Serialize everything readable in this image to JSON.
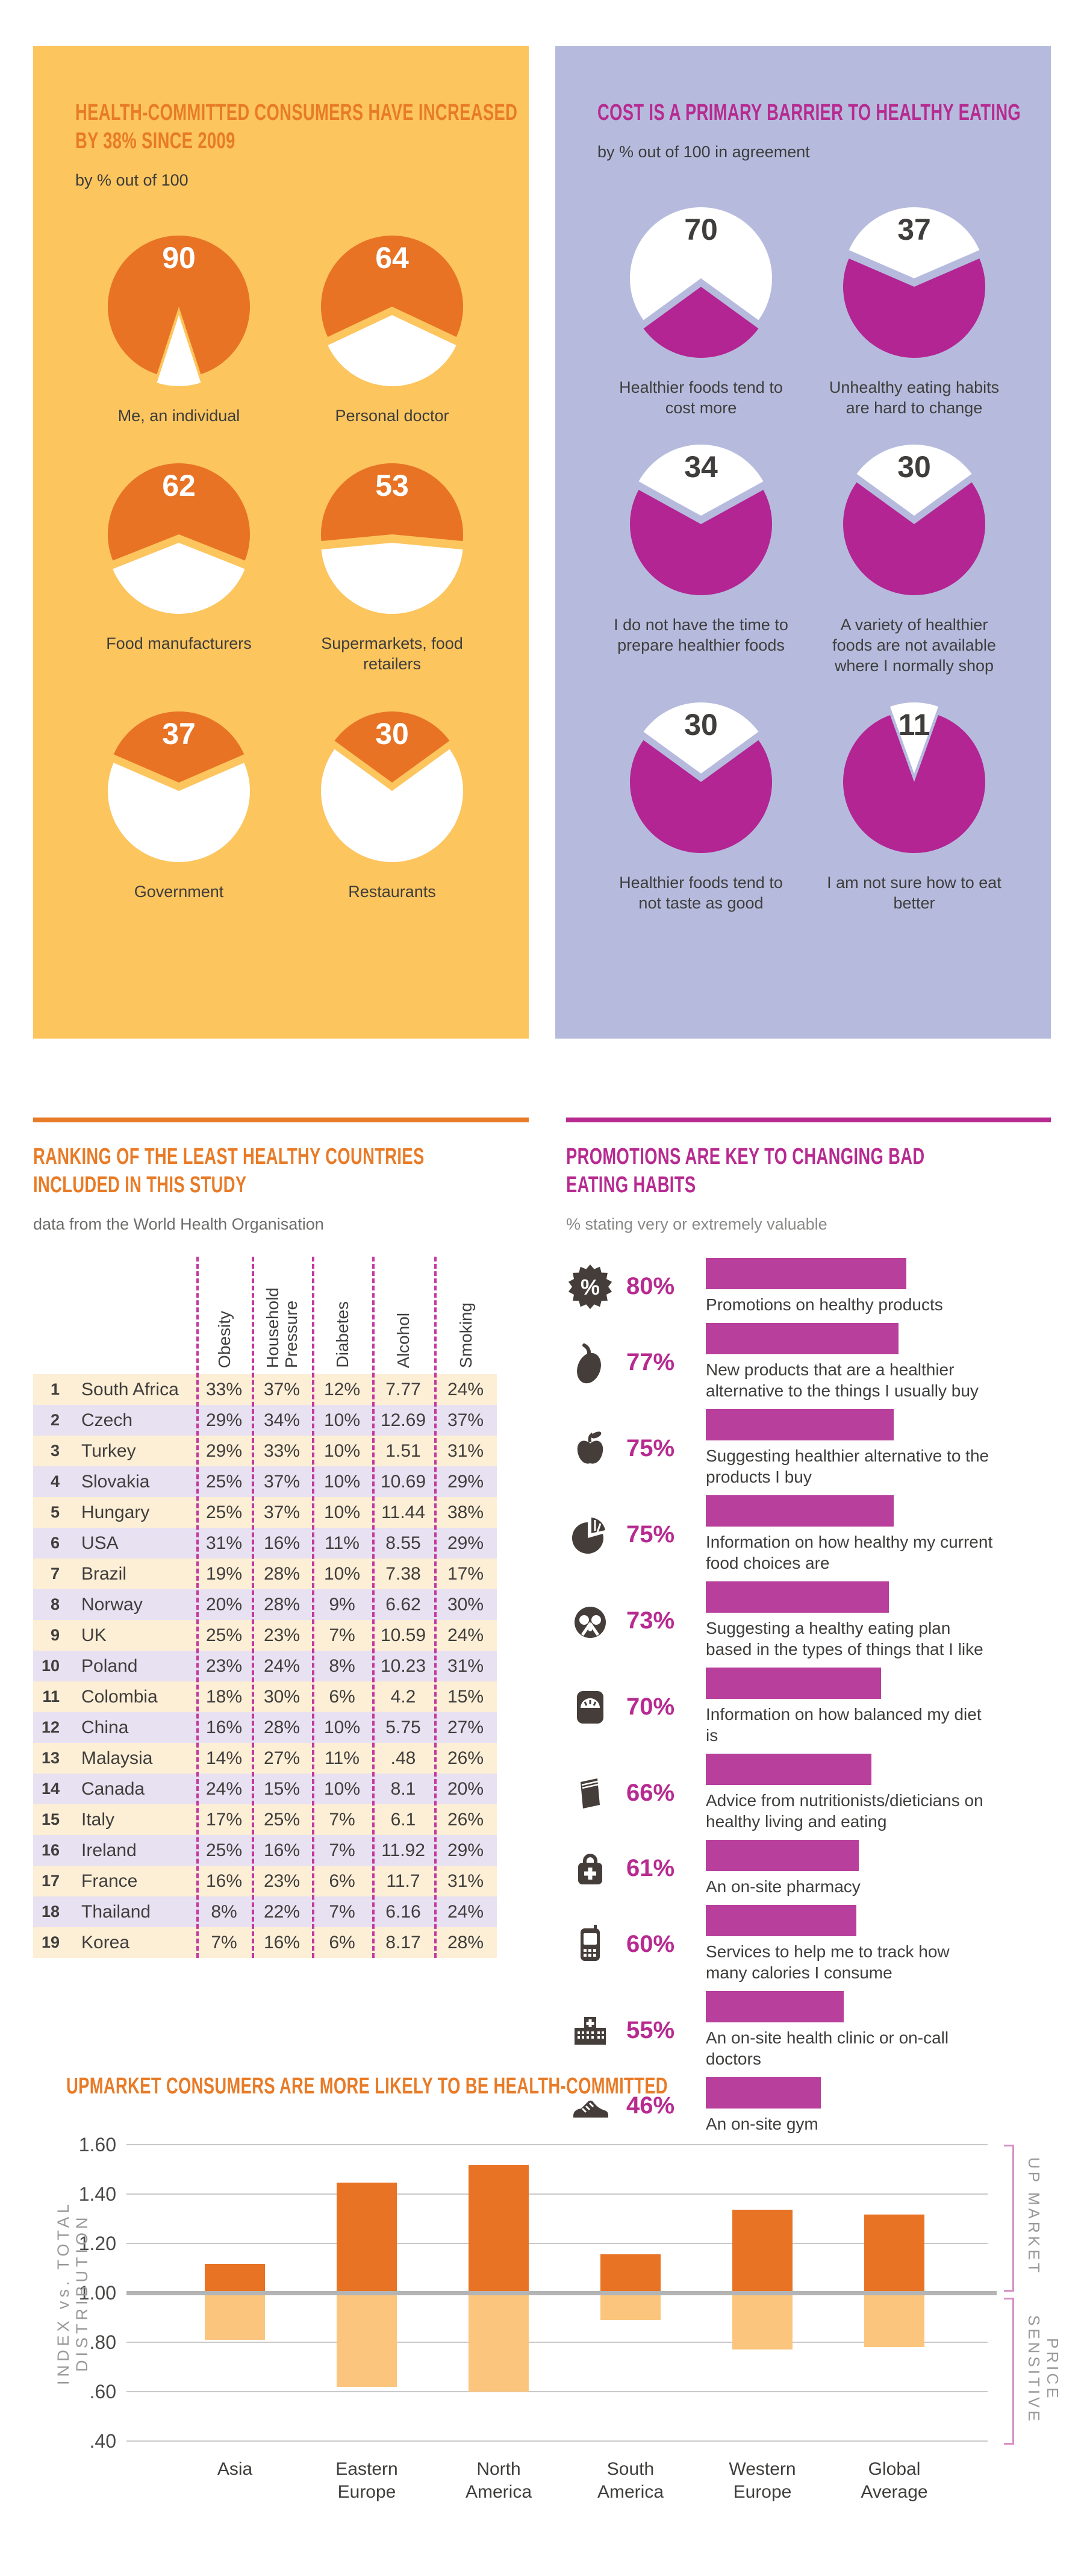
{
  "colors": {
    "yellow_bg": "#fcc55e",
    "lavender_bg": "#b6bbde",
    "orange": "#e87325",
    "orange_title": "#e87b27",
    "orange_light": "#fbc57e",
    "magenta": "#b22592",
    "magenta_title": "#b72a90",
    "magenta_bar": "#b83f9b",
    "magenta_dash": "#c4399f",
    "row_cream": "#fdeed6",
    "row_lavender": "#e7e1f1",
    "icon_gray": "#453d39",
    "text_dark": "#3f3e3c",
    "text_gray": "#6d6c6a",
    "text_light_gray": "#8a8987",
    "axis_gray": "#9a9998",
    "bracket_pink": "#d78fc5",
    "grid_gray": "#c9c9c9",
    "baseline_gray": "#b4b4b4",
    "white": "#ffffff"
  },
  "sections": {
    "committed": {
      "title_lines": [
        "HEALTH-COMMITTED CONSUMERS HAVE INCREASED",
        "BY 38% SINCE 2009"
      ],
      "subtitle": "by % out of 100"
    },
    "cost": {
      "title_lines": [
        "COST IS A PRIMARY BARRIER TO HEALTHY EATING"
      ],
      "subtitle": "by % out of 100 in agreement"
    },
    "ranking": {
      "title_lines": [
        "RANKING OF THE LEAST HEALTHY COUNTRIES",
        "INCLUDED IN THIS STUDY"
      ],
      "subtitle": "data from the World Health Organisation"
    },
    "promotions": {
      "title_lines": [
        "PROMOTIONS ARE KEY TO CHANGING BAD",
        "EATING HABITS"
      ],
      "subtitle": "% stating very or extremely valuable"
    },
    "upmarket": {
      "title_lines": [
        "UPMARKET CONSUMERS ARE MORE LIKELY TO BE HEALTH-COMMITTED"
      ]
    }
  },
  "chart_data": [
    {
      "id": "committed-pies",
      "type": "pie",
      "title": "HEALTH-COMMITTED CONSUMERS HAVE INCREASED BY 38% SINCE 2009",
      "unit": "% out of 100",
      "slices": [
        {
          "label": "Me, an individual",
          "value": 90
        },
        {
          "label": "Personal doctor",
          "value": 64
        },
        {
          "label": "Food manufacturers",
          "value": 62
        },
        {
          "label": "Supermarkets, food retailers",
          "value": 53
        },
        {
          "label": "Government",
          "value": 37
        },
        {
          "label": "Restaurants",
          "value": 30
        }
      ]
    },
    {
      "id": "cost-pies",
      "type": "pie",
      "title": "COST IS A PRIMARY BARRIER TO HEALTHY EATING",
      "unit": "% out of 100 in agreement",
      "slices": [
        {
          "label": "Healthier foods tend to cost more",
          "value": 70
        },
        {
          "label": "Unhealthy eating habits are hard to change",
          "value": 37
        },
        {
          "label": "I do not have the time to prepare healthier foods",
          "value": 34
        },
        {
          "label": "A variety of healthier foods are not available where I normally shop",
          "value": 30
        },
        {
          "label": "Healthier foods tend to not taste as good",
          "value": 30
        },
        {
          "label": "I am not sure how to eat better",
          "value": 11
        }
      ]
    },
    {
      "id": "ranking-table",
      "type": "table",
      "title": "RANKING OF THE LEAST HEALTHY COUNTRIES INCLUDED IN THIS STUDY",
      "columns": [
        "Obesity",
        "Household Pressure",
        "Diabetes",
        "Alcohol",
        "Smoking"
      ],
      "rows": [
        [
          1,
          "South Africa",
          "33%",
          "37%",
          "12%",
          "7.77",
          "24%"
        ],
        [
          2,
          "Czech",
          "29%",
          "34%",
          "10%",
          "12.69",
          "37%"
        ],
        [
          3,
          "Turkey",
          "29%",
          "33%",
          "10%",
          "1.51",
          "31%"
        ],
        [
          4,
          "Slovakia",
          "25%",
          "37%",
          "10%",
          "10.69",
          "29%"
        ],
        [
          5,
          "Hungary",
          "25%",
          "37%",
          "10%",
          "11.44",
          "38%"
        ],
        [
          6,
          "USA",
          "31%",
          "16%",
          "11%",
          "8.55",
          "29%"
        ],
        [
          7,
          "Brazil",
          "19%",
          "28%",
          "10%",
          "7.38",
          "17%"
        ],
        [
          8,
          "Norway",
          "20%",
          "28%",
          "9%",
          "6.62",
          "30%"
        ],
        [
          9,
          "UK",
          "25%",
          "23%",
          "7%",
          "10.59",
          "24%"
        ],
        [
          10,
          "Poland",
          "23%",
          "24%",
          "8%",
          "10.23",
          "31%"
        ],
        [
          11,
          "Colombia",
          "18%",
          "30%",
          "6%",
          "4.2",
          "15%"
        ],
        [
          12,
          "China",
          "16%",
          "28%",
          "10%",
          "5.75",
          "27%"
        ],
        [
          13,
          "Malaysia",
          "14%",
          "27%",
          "11%",
          ".48",
          "26%"
        ],
        [
          14,
          "Canada",
          "24%",
          "15%",
          "10%",
          "8.1",
          "20%"
        ],
        [
          15,
          "Italy",
          "17%",
          "25%",
          "7%",
          "6.1",
          "26%"
        ],
        [
          16,
          "Ireland",
          "25%",
          "16%",
          "7%",
          "11.92",
          "29%"
        ],
        [
          17,
          "France",
          "16%",
          "23%",
          "6%",
          "11.7",
          "31%"
        ],
        [
          18,
          "Thailand",
          "8%",
          "22%",
          "7%",
          "6.16",
          "24%"
        ],
        [
          19,
          "Korea",
          "7%",
          "16%",
          "6%",
          "8.17",
          "28%"
        ]
      ]
    },
    {
      "id": "promotions-bars",
      "type": "bar",
      "title": "PROMOTIONS ARE KEY TO CHANGING BAD EATING HABITS",
      "unit": "% stating very or extremely valuable",
      "categories": [
        "Promotions on healthy products",
        "New products that are a healthier alternative to the things I usually buy",
        "Suggesting healthier alternative to the products I buy",
        "Information on how healthy my current food choices are",
        "Suggesting a healthy eating plan based in the types of things that I like",
        "Information on how balanced my diet is",
        "Advice from nutritionists/dieticians on healthy living and eating",
        "An on-site pharmacy",
        "Services to help me to track how many calories I consume",
        "An on-site health clinic or on-call doctors",
        "An on-site gym"
      ],
      "values": [
        80,
        77,
        75,
        75,
        73,
        70,
        66,
        61,
        60,
        55,
        46
      ],
      "value_labels": [
        "80%",
        "77%",
        "75%",
        "75%",
        "73%",
        "70%",
        "66%",
        "61%",
        "60%",
        "55%",
        "46%"
      ],
      "icons": [
        "percent-badge",
        "eggplant",
        "apple",
        "pie-chart",
        "pretzel",
        "weighing-scale",
        "book",
        "pharmacy-bag",
        "mobile-phone",
        "hospital",
        "sneaker"
      ]
    },
    {
      "id": "upmarket-chart",
      "type": "bar",
      "title": "UPMARKET CONSUMERS ARE MORE LIKELY TO BE HEALTH-COMMITTED",
      "ylabel": "INDEX vs. TOTAL DISTRIBUTION",
      "categories": [
        "Asia",
        "Eastern Europe",
        "North America",
        "South America",
        "Western Europe",
        "Global Average"
      ],
      "series": [
        {
          "name": "UP MARKET",
          "values": [
            1.11,
            1.44,
            1.51,
            1.15,
            1.33,
            1.31
          ]
        },
        {
          "name": "PRICE SENSITIVE",
          "values": [
            0.82,
            0.63,
            0.61,
            0.9,
            0.78,
            0.79
          ]
        }
      ],
      "ytick_labels": [
        "1.60",
        "1.40",
        "1.20",
        "1.00",
        ".80",
        ".60",
        ".40"
      ],
      "yticks": [
        1.6,
        1.4,
        1.2,
        1.0,
        0.8,
        0.6,
        0.4
      ],
      "ylim": [
        0.4,
        1.6
      ],
      "baseline": 1.0,
      "grid": true,
      "right_labels": [
        "UP MARKET",
        "PRICE SENSITIVE"
      ]
    }
  ]
}
